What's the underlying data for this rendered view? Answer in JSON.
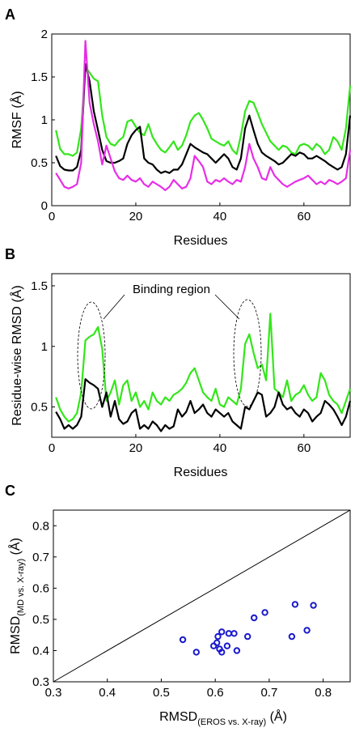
{
  "chart_data": [
    {
      "type": "line",
      "panel": "A",
      "xlabel": "Residues",
      "ylabel": "RMSF (Å)",
      "xlim": [
        0,
        71
      ],
      "ylim": [
        0,
        2
      ],
      "xticks": [
        "0",
        "20",
        "40",
        "60"
      ],
      "yticks": [
        "0",
        "0.5",
        "1",
        "1.5",
        "2"
      ],
      "x": [
        1,
        2,
        3,
        4,
        5,
        6,
        7,
        8,
        9,
        10,
        11,
        12,
        13,
        14,
        15,
        16,
        17,
        18,
        19,
        20,
        21,
        22,
        23,
        24,
        25,
        26,
        27,
        28,
        29,
        30,
        31,
        32,
        33,
        34,
        35,
        36,
        37,
        38,
        39,
        40,
        41,
        42,
        43,
        44,
        45,
        46,
        47,
        48,
        49,
        50,
        51,
        52,
        53,
        54,
        55,
        56,
        57,
        58,
        59,
        60,
        61,
        62,
        63,
        64,
        65,
        66,
        67,
        68,
        69,
        70,
        71
      ],
      "series": [
        {
          "color": "#33e61a",
          "values": [
            0.88,
            0.66,
            0.6,
            0.6,
            0.58,
            0.62,
            0.9,
            1.62,
            1.55,
            1.48,
            1.45,
            1.05,
            0.8,
            0.72,
            0.7,
            0.76,
            0.8,
            0.98,
            1.0,
            0.92,
            0.85,
            0.82,
            0.95,
            0.8,
            0.72,
            0.65,
            0.62,
            0.68,
            0.75,
            0.65,
            0.7,
            0.82,
            0.98,
            1.05,
            1.08,
            1.0,
            0.9,
            0.78,
            0.75,
            0.72,
            0.7,
            0.75,
            0.65,
            0.6,
            0.82,
            1.1,
            1.22,
            1.2,
            1.08,
            0.95,
            0.85,
            0.75,
            0.7,
            0.65,
            0.7,
            0.68,
            0.62,
            0.6,
            0.7,
            0.72,
            0.7,
            0.65,
            0.72,
            0.68,
            0.6,
            0.65,
            0.8,
            0.75,
            0.65,
            0.9,
            1.4
          ]
        },
        {
          "color": "#000000",
          "values": [
            0.58,
            0.46,
            0.42,
            0.41,
            0.41,
            0.45,
            0.65,
            1.65,
            1.45,
            1.1,
            0.88,
            0.65,
            0.52,
            0.5,
            0.5,
            0.52,
            0.55,
            0.72,
            0.82,
            0.88,
            0.92,
            0.55,
            0.5,
            0.48,
            0.42,
            0.38,
            0.4,
            0.38,
            0.42,
            0.42,
            0.48,
            0.6,
            0.72,
            0.68,
            0.65,
            0.62,
            0.6,
            0.55,
            0.5,
            0.55,
            0.6,
            0.55,
            0.45,
            0.42,
            0.55,
            0.9,
            1.05,
            0.88,
            0.72,
            0.62,
            0.58,
            0.55,
            0.52,
            0.48,
            0.5,
            0.55,
            0.6,
            0.58,
            0.62,
            0.6,
            0.55,
            0.55,
            0.58,
            0.55,
            0.52,
            0.48,
            0.45,
            0.42,
            0.45,
            0.6,
            1.05
          ]
        },
        {
          "color": "#e62ee6",
          "values": [
            0.38,
            0.3,
            0.22,
            0.2,
            0.22,
            0.25,
            0.5,
            1.92,
            1.2,
            0.95,
            0.75,
            0.48,
            0.7,
            0.55,
            0.4,
            0.32,
            0.3,
            0.35,
            0.3,
            0.28,
            0.32,
            0.25,
            0.22,
            0.28,
            0.25,
            0.22,
            0.18,
            0.22,
            0.3,
            0.25,
            0.2,
            0.22,
            0.32,
            0.58,
            0.52,
            0.45,
            0.28,
            0.25,
            0.3,
            0.28,
            0.32,
            0.28,
            0.25,
            0.3,
            0.28,
            0.45,
            0.72,
            0.55,
            0.45,
            0.32,
            0.3,
            0.45,
            0.35,
            0.3,
            0.25,
            0.22,
            0.25,
            0.28,
            0.3,
            0.32,
            0.35,
            0.3,
            0.25,
            0.28,
            0.25,
            0.3,
            0.28,
            0.25,
            0.28,
            0.32,
            0.65
          ]
        }
      ]
    },
    {
      "type": "line",
      "panel": "B",
      "xlabel": "Residues",
      "ylabel": "Residue-wise RMSD (Å)",
      "xlim": [
        0,
        71
      ],
      "ylim": [
        0.25,
        1.6
      ],
      "xticks": [
        "0",
        "20",
        "40",
        "60"
      ],
      "yticks": [
        "0.5",
        "1",
        "1.5"
      ],
      "annotation": "Binding region",
      "x": [
        1,
        2,
        3,
        4,
        5,
        6,
        7,
        8,
        9,
        10,
        11,
        12,
        13,
        14,
        15,
        16,
        17,
        18,
        19,
        20,
        21,
        22,
        23,
        24,
        25,
        26,
        27,
        28,
        29,
        30,
        31,
        32,
        33,
        34,
        35,
        36,
        37,
        38,
        39,
        40,
        41,
        42,
        43,
        44,
        45,
        46,
        47,
        48,
        49,
        50,
        51,
        52,
        53,
        54,
        55,
        56,
        57,
        58,
        59,
        60,
        61,
        62,
        63,
        64,
        65,
        66,
        67,
        68,
        69,
        70,
        71
      ],
      "series": [
        {
          "color": "#33e61a",
          "values": [
            0.58,
            0.48,
            0.42,
            0.38,
            0.4,
            0.45,
            0.62,
            1.05,
            1.08,
            1.1,
            1.16,
            0.98,
            0.55,
            0.62,
            0.72,
            0.52,
            0.68,
            0.72,
            0.55,
            0.62,
            0.5,
            0.55,
            0.48,
            0.62,
            0.55,
            0.52,
            0.58,
            0.55,
            0.6,
            0.62,
            0.65,
            0.7,
            0.78,
            0.82,
            0.72,
            0.62,
            0.58,
            0.55,
            0.65,
            0.52,
            0.5,
            0.58,
            0.55,
            0.52,
            0.65,
            1.02,
            1.1,
            0.95,
            0.82,
            0.85,
            0.72,
            1.27,
            0.65,
            0.62,
            0.58,
            0.72,
            0.55,
            0.6,
            0.62,
            0.68,
            0.6,
            0.55,
            0.58,
            0.78,
            0.72,
            0.6,
            0.55,
            0.52,
            0.45,
            0.55,
            0.65
          ]
        },
        {
          "color": "#000000",
          "values": [
            0.46,
            0.4,
            0.32,
            0.35,
            0.32,
            0.35,
            0.42,
            0.73,
            0.7,
            0.68,
            0.65,
            0.5,
            0.62,
            0.42,
            0.55,
            0.4,
            0.36,
            0.38,
            0.45,
            0.48,
            0.32,
            0.35,
            0.32,
            0.38,
            0.35,
            0.3,
            0.35,
            0.32,
            0.34,
            0.48,
            0.42,
            0.46,
            0.55,
            0.45,
            0.48,
            0.52,
            0.45,
            0.42,
            0.48,
            0.45,
            0.42,
            0.45,
            0.38,
            0.35,
            0.32,
            0.5,
            0.48,
            0.55,
            0.62,
            0.6,
            0.42,
            0.45,
            0.5,
            0.62,
            0.52,
            0.48,
            0.5,
            0.45,
            0.42,
            0.48,
            0.45,
            0.38,
            0.42,
            0.45,
            0.55,
            0.52,
            0.48,
            0.42,
            0.35,
            0.42,
            0.55
          ]
        }
      ]
    },
    {
      "type": "scatter",
      "panel": "C",
      "xlabel_main": "RMSD",
      "xlabel_sub": "(EROS vs. X-ray)",
      "xlabel_unit": " (Å)",
      "ylabel_main": "RMSD",
      "ylabel_sub": "(MD vs. X-ray)",
      "ylabel_unit": " (Å)",
      "xlim": [
        0.3,
        0.85
      ],
      "ylim": [
        0.3,
        0.85
      ],
      "xticks": [
        "0.3",
        "0.4",
        "0.5",
        "0.6",
        "0.7",
        "0.8"
      ],
      "yticks": [
        "0.3",
        "0.4",
        "0.5",
        "0.6",
        "0.7",
        "0.8"
      ],
      "diagonal": true,
      "marker_color": "#1a1acc",
      "points": [
        {
          "x": 0.54,
          "y": 0.435
        },
        {
          "x": 0.565,
          "y": 0.395
        },
        {
          "x": 0.597,
          "y": 0.415
        },
        {
          "x": 0.603,
          "y": 0.425
        },
        {
          "x": 0.605,
          "y": 0.445
        },
        {
          "x": 0.608,
          "y": 0.405
        },
        {
          "x": 0.612,
          "y": 0.395
        },
        {
          "x": 0.612,
          "y": 0.46
        },
        {
          "x": 0.622,
          "y": 0.415
        },
        {
          "x": 0.625,
          "y": 0.455
        },
        {
          "x": 0.635,
          "y": 0.455
        },
        {
          "x": 0.64,
          "y": 0.4
        },
        {
          "x": 0.66,
          "y": 0.445
        },
        {
          "x": 0.672,
          "y": 0.505
        },
        {
          "x": 0.692,
          "y": 0.522
        },
        {
          "x": 0.742,
          "y": 0.445
        },
        {
          "x": 0.748,
          "y": 0.548
        },
        {
          "x": 0.77,
          "y": 0.465
        },
        {
          "x": 0.782,
          "y": 0.545
        }
      ]
    }
  ],
  "panel_letters": [
    "A",
    "B",
    "C"
  ]
}
